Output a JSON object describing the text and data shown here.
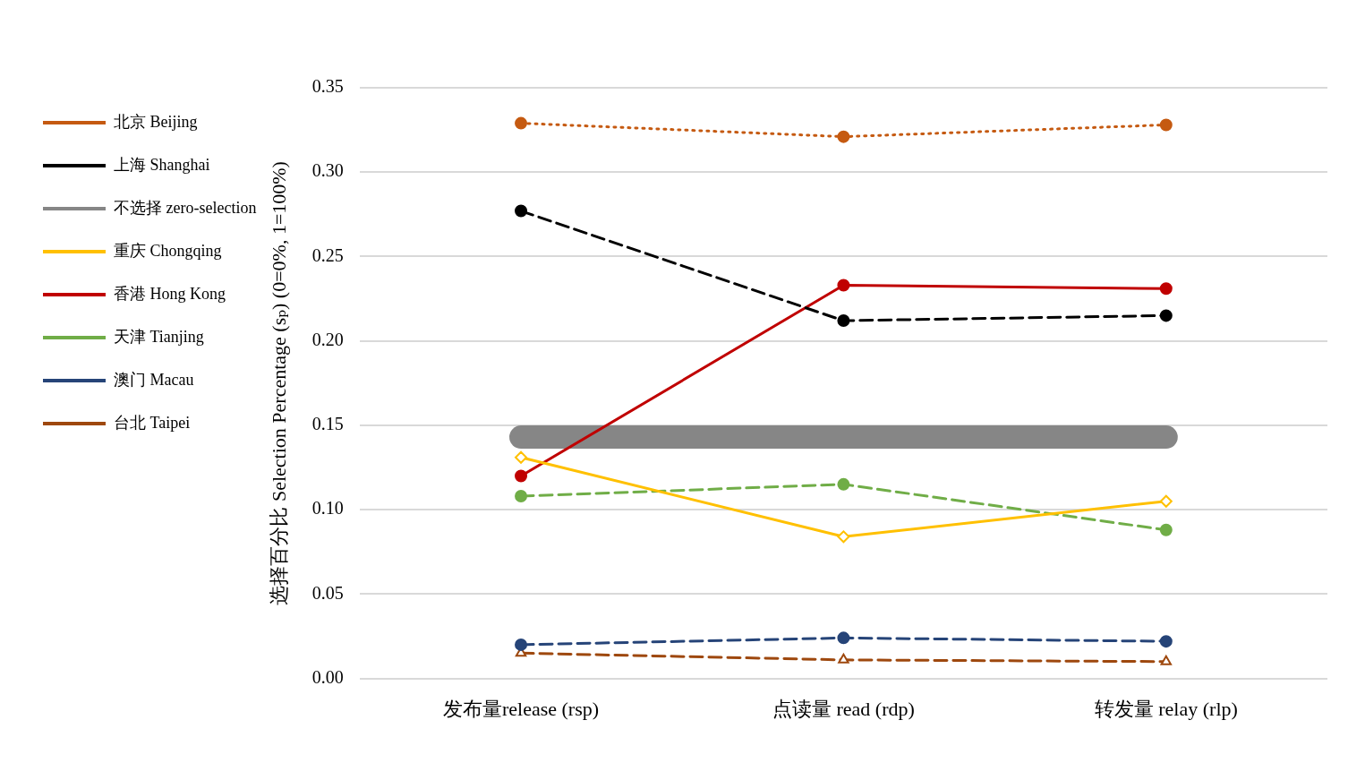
{
  "chart_data": {
    "type": "line",
    "ylabel": "选择百分比 Selection Percentage (sₚ) (0=0%, 1=100%)",
    "categories": [
      "发布量release (rsp)",
      "点读量 read (rdp)",
      "转发量 relay (rlp)"
    ],
    "ylim": [
      0,
      0.35
    ],
    "yticks": [
      {
        "value": 0,
        "label": "0.00"
      },
      {
        "value": 0.05,
        "label": "0.05"
      },
      {
        "value": 0.1,
        "label": "0.10"
      },
      {
        "value": 0.15,
        "label": "0.15"
      },
      {
        "value": 0.2,
        "label": "0.20"
      },
      {
        "value": 0.25,
        "label": "0.25"
      },
      {
        "value": 0.3,
        "label": "0.30"
      },
      {
        "value": 0.35,
        "label": "0.35"
      }
    ],
    "grid": "y",
    "legend": "left",
    "series": [
      {
        "name": "北京 Beijing",
        "color": "#c55a11",
        "values": [
          0.329,
          0.321,
          0.328
        ],
        "line_style": "dotted",
        "marker": "circle"
      },
      {
        "name": "上海 Shanghai",
        "color": "#000000",
        "values": [
          0.277,
          0.212,
          0.215
        ],
        "line_style": "dashed",
        "marker": "circle"
      },
      {
        "name": "不选择 zero-selection",
        "color": "#868686",
        "values": [
          0.143,
          0.143,
          0.143
        ],
        "line_style": "solid",
        "marker": "none"
      },
      {
        "name": "重庆 Chongqing",
        "color": "#ffc000",
        "values": [
          0.131,
          0.084,
          0.105
        ],
        "line_style": "solid",
        "marker": "diamond"
      },
      {
        "name": "香港 Hong Kong",
        "color": "#c00000",
        "values": [
          0.12,
          0.233,
          0.231
        ],
        "line_style": "solid",
        "marker": "circle"
      },
      {
        "name": "天津 Tianjing",
        "color": "#70ad47",
        "values": [
          0.108,
          0.115,
          0.088
        ],
        "line_style": "dashed",
        "marker": "circle"
      },
      {
        "name": "澳门 Macau",
        "color": "#264478",
        "values": [
          0.02,
          0.024,
          0.022
        ],
        "line_style": "dashed",
        "marker": "circle"
      },
      {
        "name": "台北 Taipei",
        "color": "#9e480e",
        "values": [
          0.015,
          0.011,
          0.01
        ],
        "line_style": "dashed",
        "marker": "triangle"
      }
    ]
  }
}
